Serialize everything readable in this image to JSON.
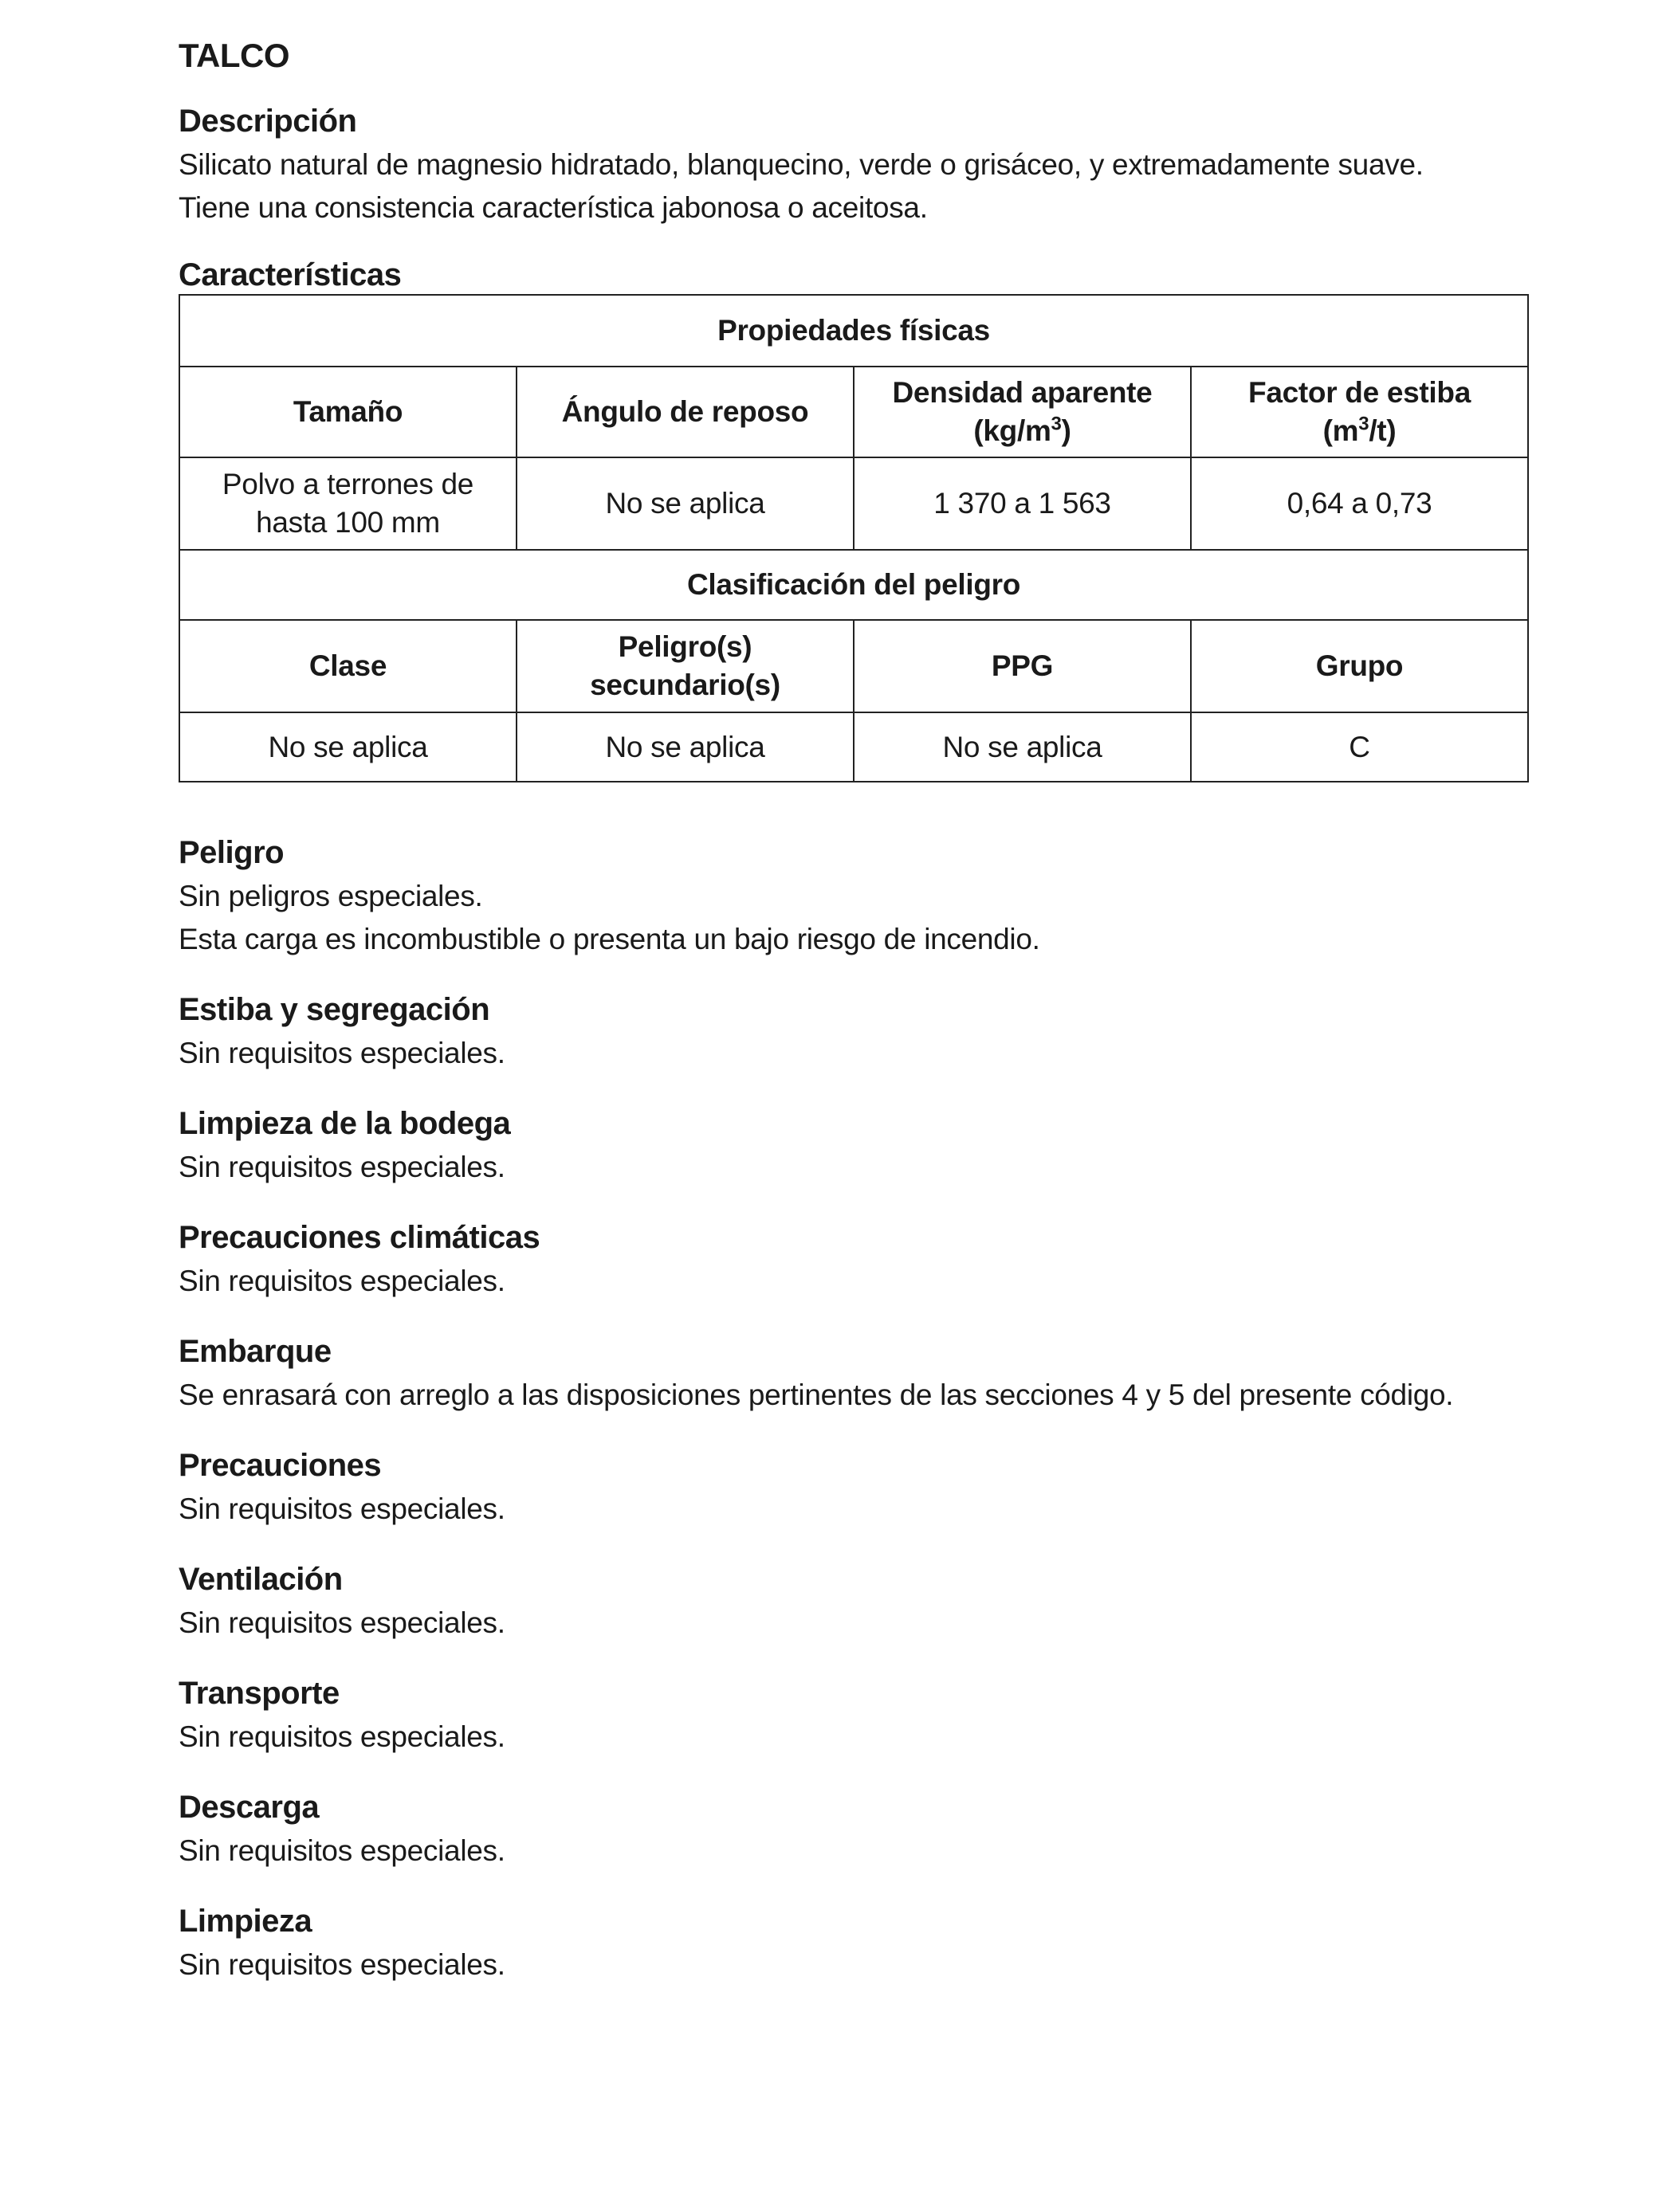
{
  "title": "TALCO",
  "descripcion": {
    "heading": "Descripción",
    "lines": [
      "Silicato natural de magnesio hidratado, blanquecino, verde o grisáceo, y extremadamente suave.",
      "Tiene una consistencia característica jabonosa o aceitosa."
    ]
  },
  "caracteristicas": {
    "heading": "Características",
    "table": {
      "physical_title": "Propiedades físicas",
      "physical_headers": [
        "Tamaño",
        "Ángulo de reposo",
        "Densidad aparente",
        "Factor de estiba"
      ],
      "density_unit_a": "(kg/m",
      "density_unit_sup": "3",
      "density_unit_b": ")",
      "stowage_unit_a": "(m",
      "stowage_unit_sup": "3",
      "stowage_unit_b": "/t)",
      "physical_values": [
        "Polvo a terrones de",
        "hasta 100 mm",
        "No se aplica",
        "1 370 a 1 563",
        "0,64 a 0,73"
      ],
      "hazard_title": "Clasificación del peligro",
      "hazard_headers": [
        "Clase",
        "Peligro(s)",
        "secundario(s)",
        "PPG",
        "Grupo"
      ],
      "hazard_values": [
        "No se aplica",
        "No se aplica",
        "No se aplica",
        "C"
      ]
    }
  },
  "sections": [
    {
      "heading": "Peligro",
      "lines": [
        "Sin peligros especiales.",
        "Esta carga es incombustible o presenta un bajo riesgo de incendio."
      ]
    },
    {
      "heading": "Estiba y segregación",
      "lines": [
        "Sin requisitos especiales."
      ]
    },
    {
      "heading": "Limpieza de la bodega",
      "lines": [
        "Sin requisitos especiales."
      ]
    },
    {
      "heading": "Precauciones climáticas",
      "lines": [
        "Sin requisitos especiales."
      ]
    },
    {
      "heading": "Embarque",
      "lines": [
        "Se enrasará con arreglo a las disposiciones pertinentes de las secciones 4 y 5 del presente código."
      ]
    },
    {
      "heading": "Precauciones",
      "lines": [
        "Sin requisitos especiales."
      ]
    },
    {
      "heading": "Ventilación",
      "lines": [
        "Sin requisitos especiales."
      ]
    },
    {
      "heading": "Transporte",
      "lines": [
        "Sin requisitos especiales."
      ]
    },
    {
      "heading": "Descarga",
      "lines": [
        "Sin requisitos especiales."
      ]
    },
    {
      "heading": "Limpieza",
      "lines": [
        "Sin requisitos especiales."
      ]
    }
  ]
}
